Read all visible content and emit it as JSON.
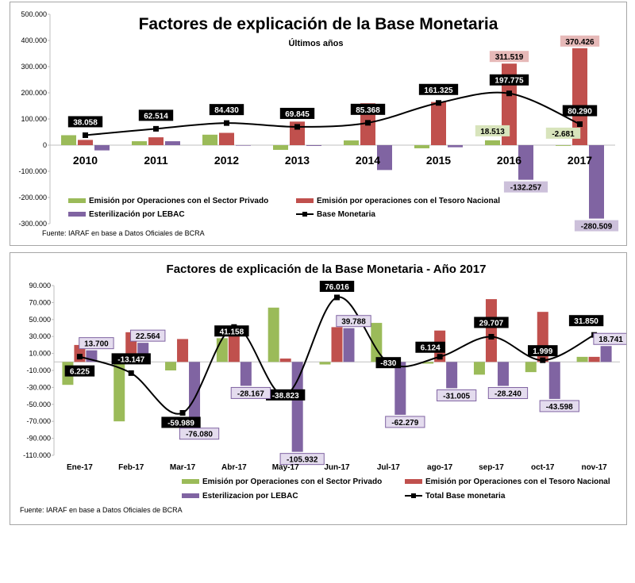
{
  "chart_data": [
    {
      "type": "bar",
      "title": "Factores de explicación de la Base Monetaria",
      "subtitle": "Últimos años",
      "categories": [
        "2010",
        "2011",
        "2012",
        "2013",
        "2014",
        "2015",
        "2016",
        "2017"
      ],
      "ylim": [
        -300000,
        500000
      ],
      "yticks": [
        "-300.000",
        "-200.000",
        "-100.000",
        "0",
        "100.000",
        "200.000",
        "300.000",
        "400.000",
        "500.000"
      ],
      "series": [
        {
          "name": "Emisión por Operaciones con el Sector Privado",
          "type": "bar",
          "color": "#9bbb59",
          "values": [
            38000,
            15000,
            40000,
            -18000,
            18000,
            -12000,
            18513,
            -2681
          ]
        },
        {
          "name": "Emisión por operaciones con el Tesoro Nacional",
          "type": "bar",
          "color": "#c0504d",
          "values": [
            20000,
            30000,
            47000,
            90000,
            160000,
            165000,
            311519,
            370426
          ]
        },
        {
          "name": "Esterilización por LEBAC",
          "type": "bar",
          "color": "#8064a2",
          "values": [
            -20000,
            15000,
            -2000,
            -3000,
            -95000,
            -8000,
            -132257,
            -280509
          ]
        },
        {
          "name": "Base Monetaria",
          "type": "line",
          "color": "#000000",
          "values": [
            38058,
            62514,
            84430,
            69845,
            85368,
            161325,
            197775,
            80290
          ]
        }
      ],
      "data_labels": {
        "line": [
          "38.058",
          "62.514",
          "84.430",
          "69.845",
          "85.368",
          "161.325",
          "197.775",
          "80.290"
        ],
        "bars": [
          {
            "category": "2016",
            "series": 0,
            "text": "18.513"
          },
          {
            "category": "2017",
            "series": 0,
            "text": "-2.681"
          },
          {
            "category": "2016",
            "series": 1,
            "text": "311.519"
          },
          {
            "category": "2017",
            "series": 1,
            "text": "370.426"
          },
          {
            "category": "2016",
            "series": 2,
            "text": "-132.257"
          },
          {
            "category": "2017",
            "series": 2,
            "text": "-280.509"
          }
        ]
      },
      "source": "Fuente: IARAF en base a Datos Oficiales de BCRA"
    },
    {
      "type": "bar",
      "title": "Factores de explicación de la Base Monetaria - Año 2017",
      "categories": [
        "Ene-17",
        "Feb-17",
        "Mar-17",
        "Abr-17",
        "May-17",
        "Jun-17",
        "Jul-17",
        "ago-17",
        "sep-17",
        "oct-17",
        "nov-17"
      ],
      "ylim": [
        -110000,
        90000
      ],
      "yticks": [
        "-110.000",
        "-90.000",
        "-70.000",
        "-50.000",
        "-30.000",
        "-10.000",
        "10.000",
        "30.000",
        "50.000",
        "70.000",
        "90.000"
      ],
      "series": [
        {
          "name": "Emisión por Operaciones con el Sector Privado",
          "type": "bar",
          "color": "#9bbb59",
          "values": [
            -27000,
            -70000,
            -10000,
            28000,
            64000,
            -3000,
            46000,
            -2000,
            -15000,
            -12000,
            6000
          ]
        },
        {
          "name": "Emisión por Operaciones con el Tesoro Nacional",
          "type": "bar",
          "color": "#c0504d",
          "values": [
            20000,
            35000,
            27000,
            42000,
            4000,
            41000,
            2000,
            37000,
            74000,
            59000,
            6000
          ]
        },
        {
          "name": "Esterilizacion por LEBAC",
          "type": "bar",
          "color": "#8064a2",
          "values": [
            13700,
            22564,
            -76080,
            -28167,
            -105932,
            39788,
            -62279,
            -31005,
            -28240,
            -43598,
            18741
          ]
        },
        {
          "name": "Total Base monetaria",
          "type": "line",
          "color": "#000000",
          "values": [
            6225,
            -13147,
            -59989,
            41158,
            -38823,
            76016,
            -830,
            6124,
            29707,
            1999,
            31850
          ]
        }
      ],
      "data_labels": {
        "line": [
          "6.225",
          "-13.147",
          "-59.989",
          "41.158",
          "-38.823",
          "76.016",
          "-830",
          "6.124",
          "29.707",
          "1.999",
          "31.850"
        ],
        "lebac": [
          "13.700",
          "22.564",
          "-76.080",
          "-28.167",
          "-105.932",
          "39.788",
          "-62.279",
          "-31.005",
          "-28.240",
          "-43.598",
          "18.741"
        ]
      },
      "source": "Fuente: IARAF en base a Datos Oficiales de BCRA"
    }
  ]
}
